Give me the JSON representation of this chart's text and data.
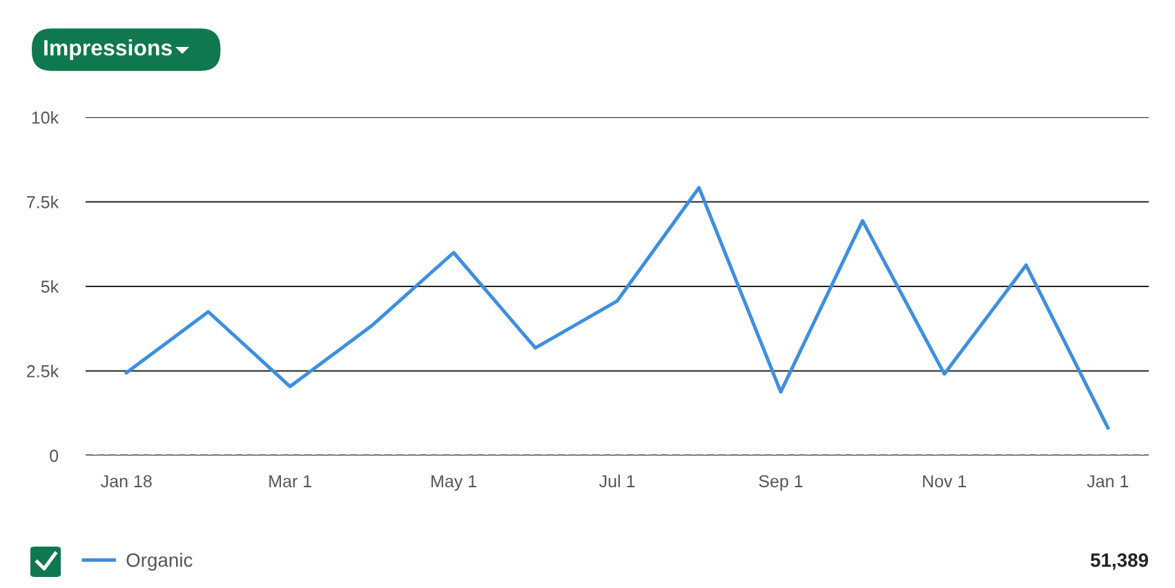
{
  "chart_data": {
    "type": "line",
    "title": "Impressions",
    "categories": [
      "Jan 18",
      null,
      "Mar 1",
      null,
      "May 1",
      null,
      "Jul 1",
      null,
      "Sep 1",
      null,
      "Nov 1",
      null,
      "Jan 1"
    ],
    "series": [
      {
        "name": "Organic",
        "color": "#3d8fe0",
        "values": [
          2450,
          4250,
          2040,
          3840,
          6000,
          3180,
          4570,
          7920,
          1880,
          6940,
          2410,
          5630,
          820
        ]
      }
    ],
    "ylim": [
      0,
      10000
    ],
    "yticks": [
      0,
      {
        "value": 2500,
        "label": "2.5k"
      },
      {
        "value": 5000,
        "label": "5k"
      },
      {
        "value": 7500,
        "label": "7.5k"
      },
      {
        "value": 10000,
        "label": "10k"
      }
    ],
    "ref_lines": [
      {
        "axis": "y",
        "value": 0,
        "color": "#444444",
        "line_style": "dashed"
      }
    ],
    "grid": "y",
    "legend": "bottom left",
    "marker": "none",
    "line_style": "solid",
    "annotations": [
      "51,389"
    ]
  }
}
